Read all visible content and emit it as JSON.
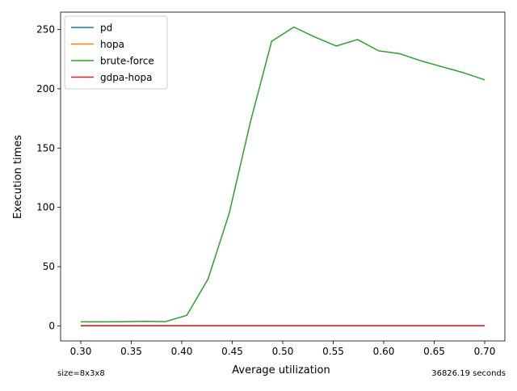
{
  "chart_data": {
    "type": "line",
    "title": "",
    "xlabel": "Average utilization",
    "ylabel": "Execution times",
    "xlim": [
      0.28,
      0.72
    ],
    "ylim": [
      -12.6,
      264.6
    ],
    "xticks": [
      0.3,
      0.35,
      0.4,
      0.45,
      0.5,
      0.55,
      0.6,
      0.65,
      0.7
    ],
    "xtick_labels": [
      "0.30",
      "0.35",
      "0.40",
      "0.45",
      "0.50",
      "0.55",
      "0.60",
      "0.65",
      "0.70"
    ],
    "yticks": [
      0,
      50,
      100,
      150,
      200,
      250
    ],
    "ytick_labels": [
      "0",
      "50",
      "100",
      "150",
      "200",
      "250"
    ],
    "grid": false,
    "legend_position": "upper-left",
    "x": [
      0.3,
      0.321,
      0.342,
      0.363,
      0.384,
      0.405,
      0.426,
      0.447,
      0.468,
      0.489,
      0.511,
      0.532,
      0.553,
      0.574,
      0.595,
      0.616,
      0.637,
      0.658,
      0.679,
      0.7
    ],
    "series": [
      {
        "name": "pd",
        "color": "#1f77b4",
        "values": [
          0.3,
          0.3,
          0.3,
          0.3,
          0.3,
          0.3,
          0.3,
          0.3,
          0.3,
          0.3,
          0.3,
          0.3,
          0.3,
          0.3,
          0.3,
          0.3,
          0.3,
          0.3,
          0.3,
          0.3
        ]
      },
      {
        "name": "hopa",
        "color": "#ff7f0e",
        "values": [
          0.2,
          0.2,
          0.2,
          0.2,
          0.2,
          0.2,
          0.2,
          0.2,
          0.2,
          0.2,
          0.2,
          0.2,
          0.2,
          0.2,
          0.2,
          0.2,
          0.2,
          0.2,
          0.2,
          0.2
        ]
      },
      {
        "name": "brute-force",
        "color": "#2ca02c",
        "values": [
          3.5,
          3.5,
          3.6,
          3.9,
          3.7,
          9.0,
          39.5,
          95.0,
          172.0,
          240.0,
          252.0,
          243.5,
          236.0,
          241.5,
          232.0,
          229.5,
          223.5,
          218.5,
          213.5,
          207.5
        ]
      },
      {
        "name": "gdpa-hopa",
        "color": "#d62728",
        "values": [
          0.1,
          0.1,
          0.1,
          0.1,
          0.1,
          0.1,
          0.1,
          0.1,
          0.1,
          0.1,
          0.1,
          0.1,
          0.1,
          0.1,
          0.1,
          0.1,
          0.1,
          0.1,
          0.1,
          0.1
        ]
      }
    ],
    "footnote_left": "size=8x3x8",
    "footnote_right": "36826.19 seconds"
  }
}
